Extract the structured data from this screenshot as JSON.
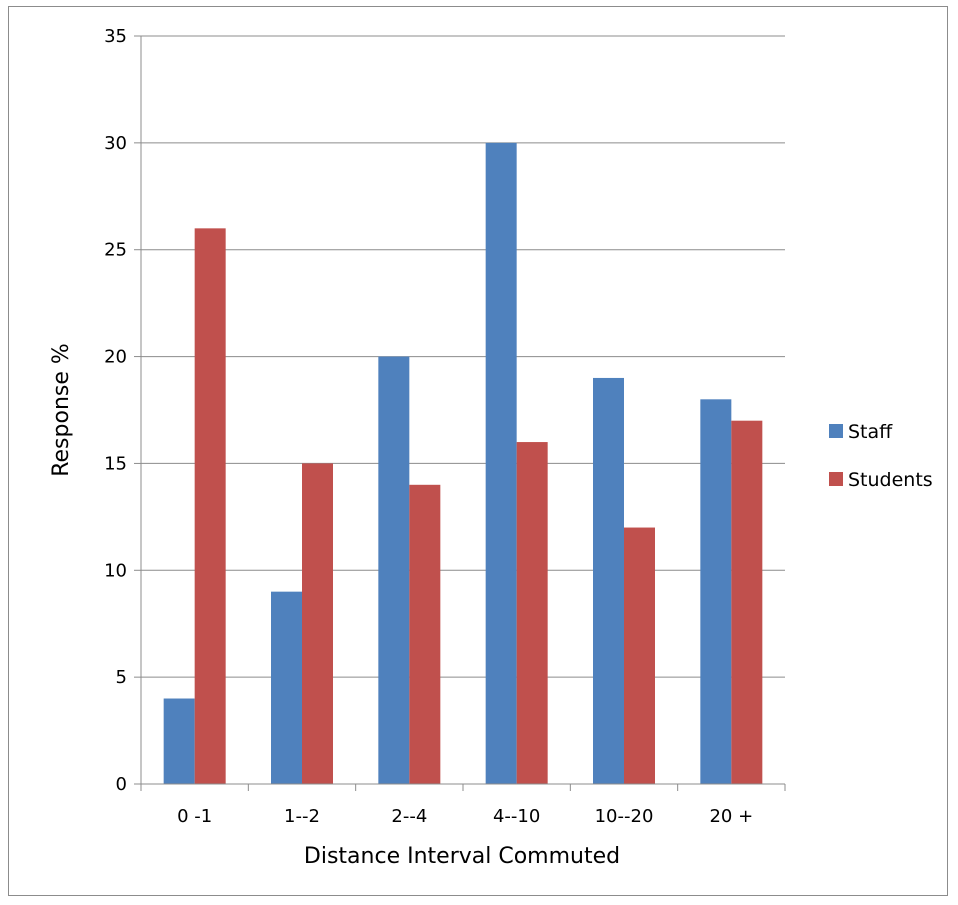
{
  "chart_data": {
    "type": "bar",
    "categories": [
      "0 -1",
      "1--2",
      "2--4",
      "4--10",
      "10--20",
      "20 +"
    ],
    "series": [
      {
        "name": "Staff",
        "values": [
          4,
          9,
          20,
          30,
          19,
          18
        ],
        "color": "#4f81bd"
      },
      {
        "name": "Students",
        "values": [
          26,
          15,
          14,
          16,
          12,
          17
        ],
        "color": "#c0504d"
      }
    ],
    "xlabel": "Distance Interval Commuted",
    "ylabel": "Response %",
    "ylim": [
      0,
      35
    ],
    "yticks": [
      "0",
      "5",
      "10",
      "15",
      "20",
      "25",
      "30",
      "35"
    ],
    "grid": true,
    "legend_position": "right"
  }
}
